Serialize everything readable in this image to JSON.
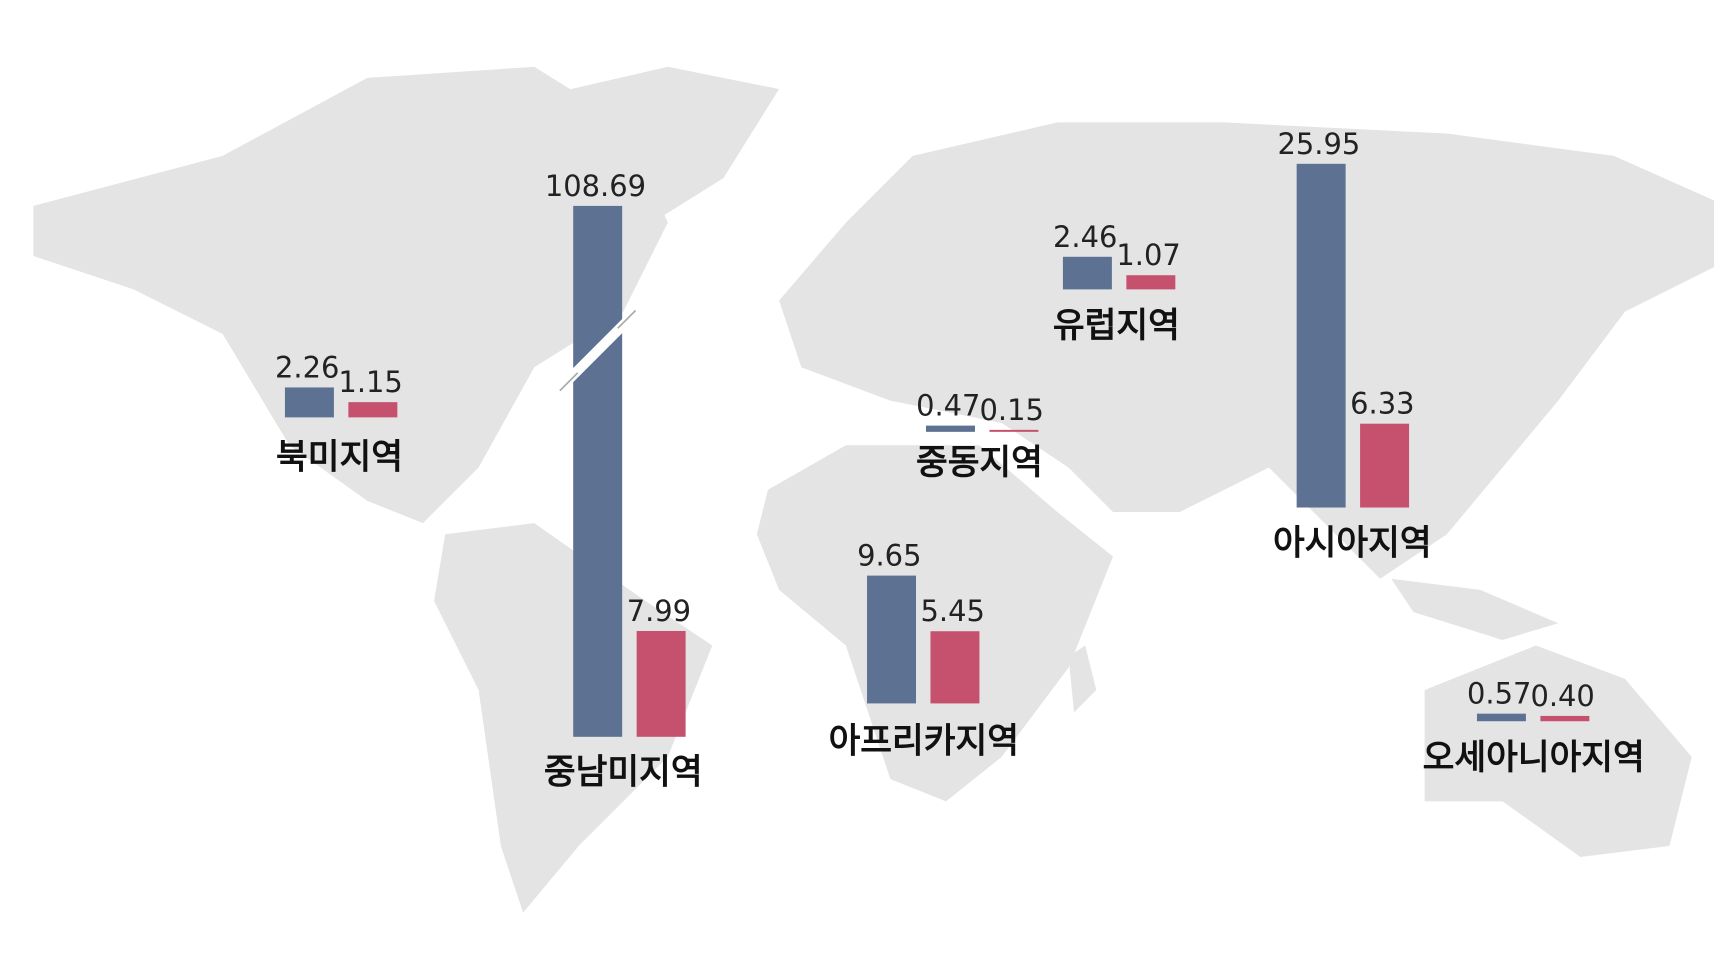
{
  "chart_data": {
    "type": "map-bar",
    "categories": [
      "북미지역",
      "중남미지역",
      "아프리카지역",
      "중동지역",
      "유럽지역",
      "아시아지역",
      "오세아니아지역"
    ],
    "series": [
      {
        "color": "#5d7192",
        "values": [
          2.26,
          108.69,
          9.65,
          0.47,
          2.46,
          25.95,
          0.57
        ],
        "value_labels": [
          "2.26",
          "108.69",
          "9.65",
          "0.47",
          "2.46",
          "25.95",
          "0.57"
        ]
      },
      {
        "color": "#c6516e",
        "values": [
          1.15,
          7.99,
          5.45,
          0.15,
          1.07,
          6.33,
          0.4
        ],
        "value_labels": [
          "1.15",
          "7.99",
          "5.45",
          "0.15",
          "1.07",
          "6.33",
          "0.40"
        ]
      }
    ]
  }
}
